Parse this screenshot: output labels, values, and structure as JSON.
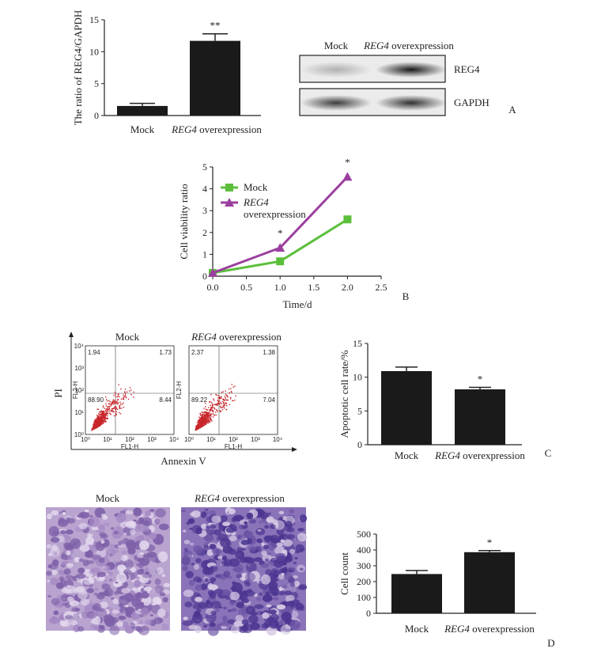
{
  "labels": {
    "mock": "Mock",
    "reg4": "REG4",
    "overexpression": " overexpression",
    "overexpression_short": "overexpression"
  },
  "chart_data": [
    {
      "panel": "A",
      "type": "bar",
      "ylabel": "The ratio of REG4/GAPDH",
      "ylim": [
        0,
        15
      ],
      "yticks": [
        0,
        5,
        10,
        15
      ],
      "categories": [
        "Mock",
        "REG4 overexpression"
      ],
      "values": [
        1.5,
        11.7
      ],
      "errors": [
        0.4,
        1.1
      ],
      "annotations": [
        "",
        "**"
      ],
      "color": "#1a1a1a"
    },
    {
      "panel": "A",
      "type": "blot",
      "lanes": [
        "Mock",
        "REG4 overexpression"
      ],
      "bands": [
        {
          "label": "REG4",
          "intensity": [
            0.25,
            0.9
          ]
        },
        {
          "label": "GAPDH",
          "intensity": [
            0.75,
            0.8
          ]
        }
      ]
    },
    {
      "panel": "B",
      "type": "line",
      "xlabel": "Time/d",
      "ylabel": "Cell viability ratio",
      "xlim": [
        0,
        2.5
      ],
      "ylim": [
        0,
        5
      ],
      "xticks": [
        "0.0",
        "0.5",
        "1.0",
        "1.5",
        "2.0",
        "2.5"
      ],
      "yticks": [
        0,
        1,
        2,
        3,
        4,
        5
      ],
      "series": [
        {
          "name": "Mock",
          "x": [
            0,
            1,
            2
          ],
          "y": [
            0.15,
            0.68,
            2.6
          ],
          "color": "#5cbf3c",
          "marker": "square"
        },
        {
          "name": "REG4 overexpression",
          "x": [
            0,
            1,
            2
          ],
          "y": [
            0.15,
            1.3,
            4.55
          ],
          "color": "#9b3f9f",
          "marker": "triangle"
        }
      ],
      "annotations": [
        {
          "x": 1.0,
          "text": "*"
        },
        {
          "x": 2.0,
          "text": "*"
        }
      ]
    },
    {
      "panel": "C",
      "type": "scatter",
      "xlabel": "Annexin V",
      "ylabel": "PI",
      "axis_titles": {
        "x": "FL1-H",
        "y": "FL2-H"
      },
      "ticks": [
        "10⁰",
        "10¹",
        "10²",
        "10³",
        "10⁴"
      ],
      "plots": [
        {
          "title": "Mock",
          "quadrants": {
            "ul": "1.94",
            "ur": "1.73",
            "ll": "88.90",
            "lr": "8.44"
          }
        },
        {
          "title": "REG4 overexpression",
          "quadrants": {
            "ul": "2.37",
            "ur": "1.38",
            "ll": "89.22",
            "lr": "7.04"
          }
        }
      ]
    },
    {
      "panel": "C",
      "type": "bar",
      "ylabel": "Apoptotic cell rate/%",
      "ylim": [
        0,
        15
      ],
      "yticks": [
        0,
        5,
        10,
        15
      ],
      "categories": [
        "Mock",
        "REG4 overexpression"
      ],
      "values": [
        10.9,
        8.2
      ],
      "errors": [
        0.6,
        0.3
      ],
      "annotations": [
        "",
        "*"
      ],
      "color": "#1a1a1a"
    },
    {
      "panel": "D",
      "type": "image",
      "titles": [
        "Mock",
        "REG4 overexpression"
      ],
      "stain_colors": [
        "#b9a3cf",
        "#8a73b8"
      ]
    },
    {
      "panel": "D",
      "type": "bar",
      "ylabel": "Cell count",
      "ylim": [
        0,
        500
      ],
      "yticks": [
        0,
        100,
        200,
        300,
        400,
        500
      ],
      "categories": [
        "Mock",
        "REG4 overexpression"
      ],
      "values": [
        248,
        386
      ],
      "errors": [
        22,
        10
      ],
      "annotations": [
        "",
        "*"
      ],
      "color": "#1a1a1a"
    }
  ],
  "panel_letters": [
    "A",
    "B",
    "C",
    "D"
  ]
}
